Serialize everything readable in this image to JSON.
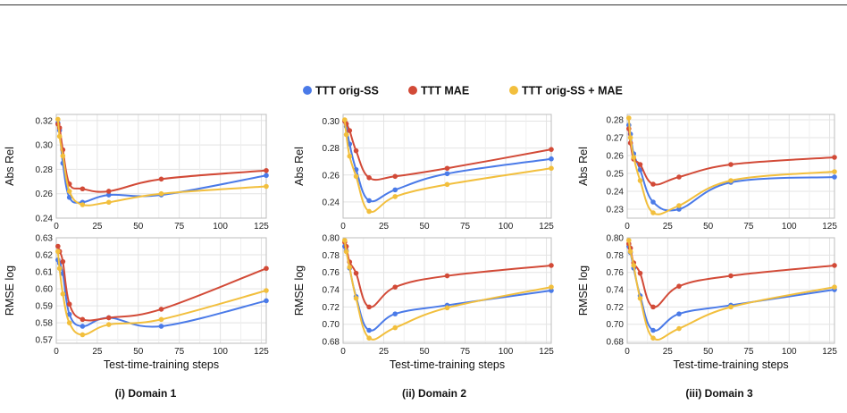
{
  "legend": [
    {
      "name": "TTT orig-SS",
      "color": "#4a7ae8"
    },
    {
      "name": "TTT MAE",
      "color": "#d24a37"
    },
    {
      "name": "TTT orig-SS + MAE",
      "color": "#f2bf3d"
    }
  ],
  "captions": [
    "(i) Domain 1",
    "(ii) Domain 2",
    "(iii) Domain 3"
  ],
  "xlabel": "Test-time-training steps",
  "chart_data": [
    {
      "type": "line",
      "panel": "Domain 1",
      "metric": "Abs Rel",
      "ylabel": "Abs Rel",
      "xlim": [
        0,
        128
      ],
      "ylim": [
        0.24,
        0.325
      ],
      "xticks": [
        0,
        25,
        50,
        75,
        100,
        125
      ],
      "yticks": [
        0.24,
        0.26,
        0.28,
        0.3,
        0.32
      ],
      "ytick_labels": [
        "0.24",
        "0.26",
        "0.28",
        "0.30",
        "0.32"
      ],
      "grid": true,
      "x": [
        1,
        2,
        4,
        8,
        16,
        32,
        64,
        128
      ],
      "series": [
        {
          "name": "TTT orig-SS",
          "values": [
            0.318,
            0.312,
            0.285,
            0.257,
            0.253,
            0.259,
            0.259,
            0.275
          ]
        },
        {
          "name": "TTT MAE",
          "values": [
            0.317,
            0.314,
            0.296,
            0.268,
            0.264,
            0.262,
            0.272,
            0.279
          ]
        },
        {
          "name": "TTT orig-SS + MAE",
          "values": [
            0.321,
            0.307,
            0.291,
            0.262,
            0.251,
            0.253,
            0.26,
            0.266
          ]
        }
      ]
    },
    {
      "type": "line",
      "panel": "Domain 1",
      "metric": "RMSE log",
      "ylabel": "RMSE log",
      "xlim": [
        0,
        128
      ],
      "ylim": [
        0.568,
        0.63
      ],
      "xticks": [
        0,
        25,
        50,
        75,
        100,
        125
      ],
      "yticks": [
        0.57,
        0.58,
        0.59,
        0.6,
        0.61,
        0.62,
        0.63
      ],
      "ytick_labels": [
        "0.57",
        "0.58",
        "0.59",
        "0.60",
        "0.61",
        "0.62",
        "0.63"
      ],
      "grid": true,
      "x": [
        1,
        2,
        4,
        8,
        16,
        32,
        64,
        128
      ],
      "series": [
        {
          "name": "TTT orig-SS",
          "values": [
            0.617,
            0.615,
            0.609,
            0.585,
            0.578,
            0.583,
            0.578,
            0.593
          ]
        },
        {
          "name": "TTT MAE",
          "values": [
            0.625,
            0.622,
            0.616,
            0.591,
            0.582,
            0.583,
            0.588,
            0.612
          ]
        },
        {
          "name": "TTT orig-SS + MAE",
          "values": [
            0.622,
            0.612,
            0.597,
            0.58,
            0.573,
            0.579,
            0.582,
            0.599
          ]
        }
      ]
    },
    {
      "type": "line",
      "panel": "Domain 2",
      "metric": "Abs Rel",
      "ylabel": "Abs Rel",
      "xlim": [
        0,
        128
      ],
      "ylim": [
        0.228,
        0.305
      ],
      "xticks": [
        0,
        25,
        50,
        75,
        100,
        125
      ],
      "yticks": [
        0.24,
        0.26,
        0.28,
        0.3
      ],
      "ytick_labels": [
        "0.24",
        "0.26",
        "0.28",
        "0.30"
      ],
      "grid": true,
      "x": [
        1,
        2,
        4,
        8,
        16,
        32,
        64,
        128
      ],
      "series": [
        {
          "name": "TTT orig-SS",
          "values": [
            0.3,
            0.296,
            0.283,
            0.264,
            0.241,
            0.249,
            0.261,
            0.272
          ]
        },
        {
          "name": "TTT MAE",
          "values": [
            0.3,
            0.298,
            0.293,
            0.278,
            0.258,
            0.259,
            0.265,
            0.279
          ]
        },
        {
          "name": "TTT orig-SS + MAE",
          "values": [
            0.301,
            0.29,
            0.274,
            0.259,
            0.233,
            0.244,
            0.253,
            0.265
          ]
        }
      ]
    },
    {
      "type": "line",
      "panel": "Domain 2",
      "metric": "RMSE log",
      "ylabel": "RMSE log",
      "xlim": [
        0,
        128
      ],
      "ylim": [
        0.678,
        0.8
      ],
      "xticks": [
        0,
        25,
        50,
        75,
        100,
        125
      ],
      "yticks": [
        0.68,
        0.7,
        0.72,
        0.74,
        0.76,
        0.78,
        0.8
      ],
      "ytick_labels": [
        "0.68",
        "0.70",
        "0.72",
        "0.74",
        "0.76",
        "0.78",
        "0.80"
      ],
      "grid": true,
      "x": [
        1,
        2,
        4,
        8,
        16,
        32,
        64,
        128
      ],
      "series": [
        {
          "name": "TTT orig-SS",
          "values": [
            0.79,
            0.785,
            0.765,
            0.732,
            0.693,
            0.712,
            0.722,
            0.739
          ]
        },
        {
          "name": "TTT MAE",
          "values": [
            0.795,
            0.79,
            0.772,
            0.759,
            0.72,
            0.743,
            0.756,
            0.768
          ]
        },
        {
          "name": "TTT orig-SS + MAE",
          "values": [
            0.797,
            0.784,
            0.766,
            0.73,
            0.684,
            0.696,
            0.719,
            0.743
          ]
        }
      ]
    },
    {
      "type": "line",
      "panel": "Domain 3",
      "metric": "Abs Rel",
      "ylabel": "Abs Rel",
      "xlim": [
        0,
        128
      ],
      "ylim": [
        0.225,
        0.283
      ],
      "xticks": [
        0,
        25,
        50,
        75,
        100,
        125
      ],
      "yticks": [
        0.23,
        0.24,
        0.25,
        0.26,
        0.27,
        0.28
      ],
      "ytick_labels": [
        "0.23",
        "0.24",
        "0.25",
        "0.26",
        "0.27",
        "0.28"
      ],
      "grid": true,
      "x": [
        1,
        2,
        4,
        8,
        16,
        32,
        64,
        128
      ],
      "series": [
        {
          "name": "TTT orig-SS",
          "values": [
            0.277,
            0.272,
            0.261,
            0.252,
            0.234,
            0.23,
            0.245,
            0.248
          ]
        },
        {
          "name": "TTT MAE",
          "values": [
            0.275,
            0.267,
            0.258,
            0.255,
            0.244,
            0.248,
            0.255,
            0.259
          ]
        },
        {
          "name": "TTT orig-SS + MAE",
          "values": [
            0.281,
            0.27,
            0.259,
            0.246,
            0.228,
            0.232,
            0.246,
            0.251
          ]
        }
      ]
    },
    {
      "type": "line",
      "panel": "Domain 3",
      "metric": "RMSE log",
      "ylabel": "RMSE log",
      "xlim": [
        0,
        128
      ],
      "ylim": [
        0.678,
        0.8
      ],
      "xticks": [
        0,
        25,
        50,
        75,
        100,
        125
      ],
      "yticks": [
        0.68,
        0.7,
        0.72,
        0.74,
        0.76,
        0.78,
        0.8
      ],
      "ytick_labels": [
        "0.68",
        "0.70",
        "0.72",
        "0.74",
        "0.76",
        "0.78",
        "0.80"
      ],
      "grid": true,
      "x": [
        1,
        2,
        4,
        8,
        16,
        32,
        64,
        128
      ],
      "series": [
        {
          "name": "TTT orig-SS",
          "values": [
            0.79,
            0.783,
            0.765,
            0.733,
            0.693,
            0.712,
            0.722,
            0.74
          ]
        },
        {
          "name": "TTT MAE",
          "values": [
            0.793,
            0.788,
            0.771,
            0.759,
            0.72,
            0.744,
            0.756,
            0.768
          ]
        },
        {
          "name": "TTT orig-SS + MAE",
          "values": [
            0.797,
            0.784,
            0.768,
            0.73,
            0.684,
            0.695,
            0.72,
            0.743
          ]
        }
      ]
    }
  ]
}
